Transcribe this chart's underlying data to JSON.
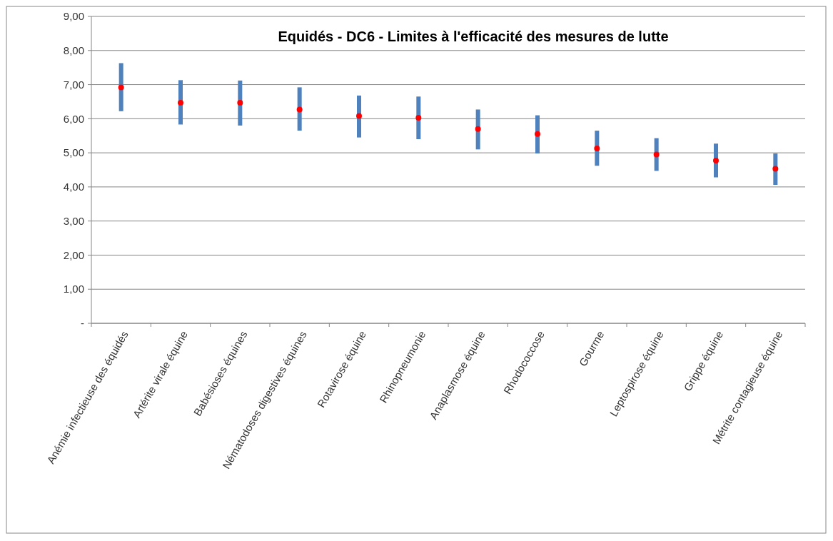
{
  "chart_data": {
    "type": "scatter",
    "title": "Equidés - DC6 - Limites à l'efficacité des mesures de lutte",
    "categories": [
      "Anémie infectieuse des équidés",
      "Artérite virale équine",
      "Babésioses équines",
      "Nématodoses digestives équines",
      "Rotavirose équine",
      "Rhinopneumonie",
      "Anaplasmose équine",
      "Rhodococcose",
      "Gourme",
      "Leptospirose équine",
      "Grippe équine",
      "Métrite contagieuse équine"
    ],
    "series": [
      {
        "color": "#ff0000",
        "values": [
          6.92,
          6.47,
          6.47,
          6.27,
          6.08,
          6.03,
          5.7,
          5.55,
          5.13,
          4.95,
          4.77,
          4.53
        ],
        "errors": [
          [
            6.22,
            7.63
          ],
          [
            5.83,
            7.13
          ],
          [
            5.8,
            7.12
          ],
          [
            5.65,
            6.92
          ],
          [
            5.45,
            6.68
          ],
          [
            5.4,
            6.65
          ],
          [
            5.1,
            6.27
          ],
          [
            4.98,
            6.1
          ],
          [
            4.62,
            5.65
          ],
          [
            4.47,
            5.43
          ],
          [
            4.28,
            5.27
          ],
          [
            4.06,
            4.98
          ]
        ]
      }
    ],
    "ylim": [
      0,
      9
    ],
    "yticks": [
      {
        "value": 0,
        "label": "-"
      },
      {
        "value": 1,
        "label": "1,00"
      },
      {
        "value": 2,
        "label": "2,00"
      },
      {
        "value": 3,
        "label": "3,00"
      },
      {
        "value": 4,
        "label": "4,00"
      },
      {
        "value": 5,
        "label": "5,00"
      },
      {
        "value": 6,
        "label": "6,00"
      },
      {
        "value": 7,
        "label": "7,00"
      },
      {
        "value": 8,
        "label": "8,00"
      },
      {
        "value": 9,
        "label": "9,00"
      }
    ],
    "grid": "y",
    "marker": "circle"
  }
}
